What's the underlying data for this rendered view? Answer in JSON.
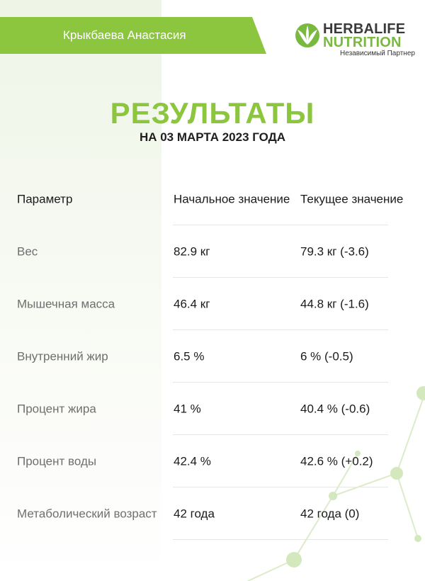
{
  "header": {
    "name": "Крыкбаева Анастасия",
    "brand_top": "HERBALIFE",
    "brand_bottom": "NUTRITION",
    "partner": "Независимый Партнер",
    "logo_icon": "herbalife-leaf-icon"
  },
  "title": "РЕЗУЛЬТАТЫ",
  "subtitle": "НА 03 МАРТА 2023 ГОДА",
  "table": {
    "headers": [
      "Параметр",
      "Начальное значение",
      "Текущее значение"
    ],
    "rows": [
      [
        "Вес",
        "82.9 кг",
        "79.3 кг (-3.6)"
      ],
      [
        "Мышечная масса",
        "46.4 кг",
        "44.8 кг (-1.6)"
      ],
      [
        "Внутренний жир",
        "6.5 %",
        "6 % (-0.5)"
      ],
      [
        "Процент жира",
        "41 %",
        "40.4 % (-0.6)"
      ],
      [
        "Процент воды",
        "42.4 %",
        "42.6 % (+0.2)"
      ],
      [
        "Метаболический возраст",
        "42 года",
        "42 года (0)"
      ]
    ]
  },
  "colors": {
    "accent_green": "#8cc63f",
    "text_dark": "#1a1a1a",
    "text_muted": "#6f6f6f"
  }
}
